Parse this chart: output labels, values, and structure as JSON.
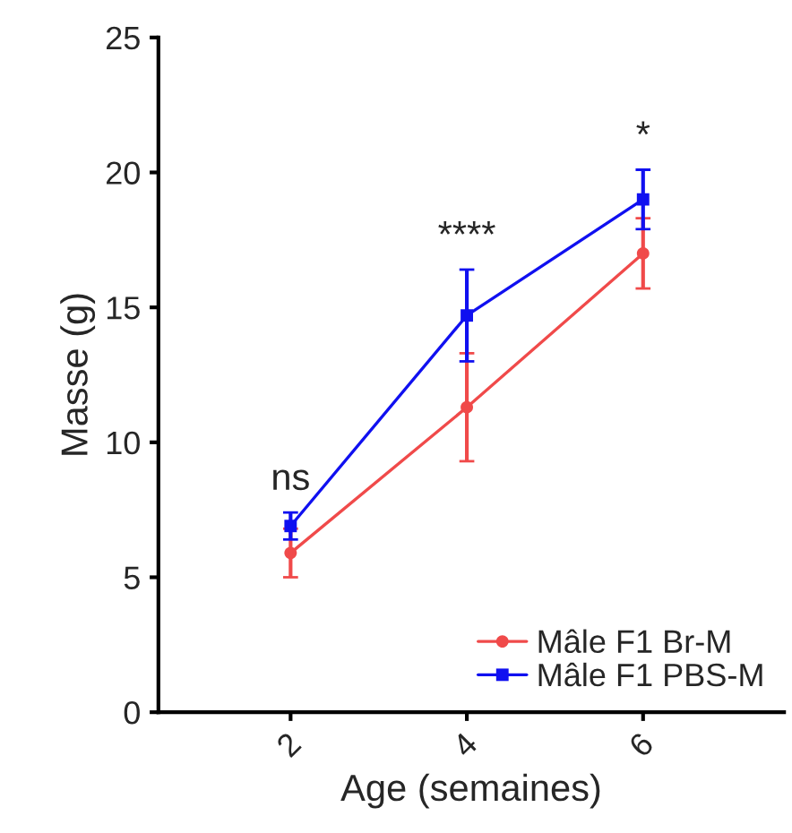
{
  "chart_data": {
    "type": "line",
    "xlabel": "Age (semaines)",
    "ylabel": "Masse (g)",
    "x": [
      2,
      4,
      6
    ],
    "series": [
      {
        "name": "Mâle F1 Br-M",
        "color": "#f04a4a",
        "marker": "circle",
        "values": [
          5.9,
          11.3,
          17.0
        ],
        "errors": [
          0.9,
          2.0,
          1.3
        ]
      },
      {
        "name": "Mâle F1 PBS-M",
        "color": "#1010f0",
        "marker": "square",
        "values": [
          6.9,
          14.7,
          19.0
        ],
        "errors": [
          0.5,
          1.7,
          1.1
        ]
      }
    ],
    "xlim": [
      0.5,
      7.6
    ],
    "xticks": [
      2,
      4,
      6
    ],
    "ylim": [
      0,
      25
    ],
    "yticks": [
      0,
      5,
      10,
      15,
      20,
      25
    ],
    "annotations": [
      "ns",
      "****",
      "*"
    ],
    "grid": false,
    "legend": "bottom right",
    "line_style": "solid"
  }
}
